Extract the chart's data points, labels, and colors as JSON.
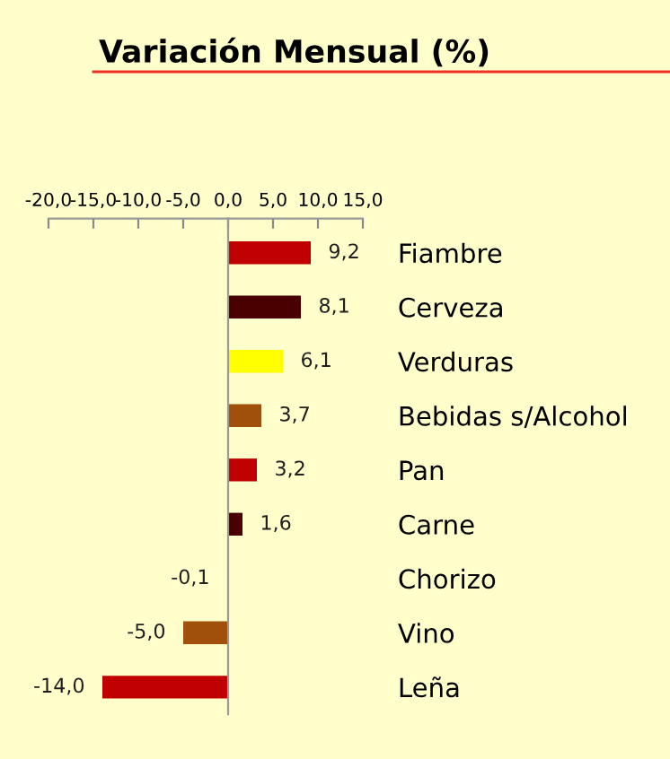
{
  "chart_data": {
    "type": "bar",
    "orientation": "horizontal",
    "title": "Variación Mensual (%)",
    "categories": [
      "Fiambre",
      "Cerveza",
      "Verduras",
      "Bebidas s/Alcohol",
      "Pan",
      "Carne",
      "Chorizo",
      "Vino",
      "Leña"
    ],
    "series": [
      {
        "colors": [
          "#c00000",
          "#4a0000",
          "#ffff00",
          "#a0500a",
          "#c00000",
          "#4a0000",
          "#ffff00",
          "#a0500a",
          "#c00000"
        ],
        "values": [
          9.2,
          8.1,
          6.1,
          3.7,
          3.2,
          1.6,
          -0.1,
          -5.0,
          -14.0
        ],
        "value_labels": [
          "9,2",
          "8,1",
          "6,1",
          "3,7",
          "3,2",
          "1,6",
          "-0,1",
          "-5,0",
          "-14,0"
        ]
      }
    ],
    "xlim": [
      -20,
      15
    ],
    "xticks": [
      {
        "value": -20,
        "label": "-20,0"
      },
      {
        "value": -15,
        "label": "-15,0"
      },
      {
        "value": -10,
        "label": "-10,0"
      },
      {
        "value": -5,
        "label": "-5,0"
      },
      {
        "value": 0,
        "label": "0,0"
      },
      {
        "value": 5,
        "label": "5,0"
      },
      {
        "value": 10,
        "label": "10,0"
      },
      {
        "value": 15,
        "label": "15,0"
      }
    ],
    "legend": false
  }
}
